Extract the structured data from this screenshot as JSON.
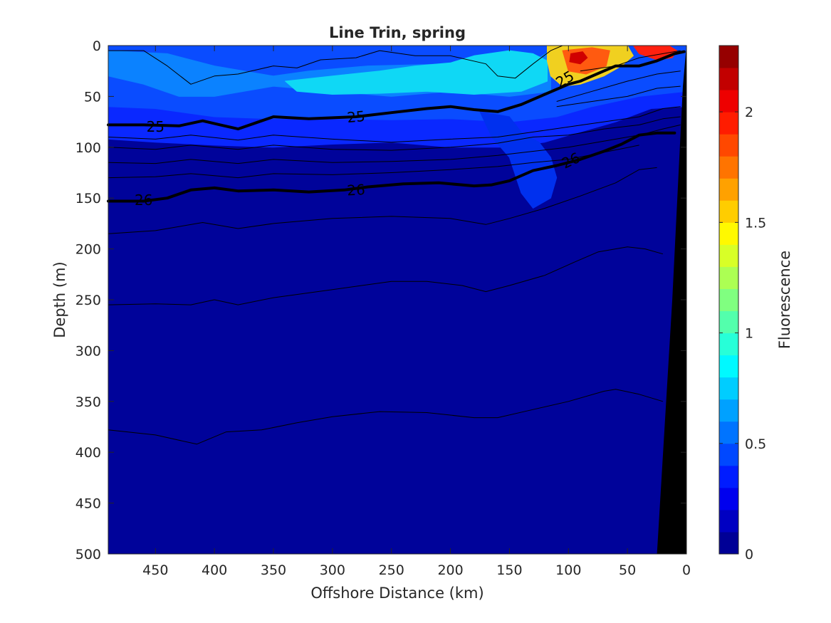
{
  "chart_data": {
    "type": "heatmap",
    "title": "Line Trin, spring",
    "xlabel": "Offshore Distance (km)",
    "ylabel": "Depth (m)",
    "colorbar_label": "Fluorescence",
    "xlim": [
      490,
      0
    ],
    "ylim": [
      500,
      0
    ],
    "x_reversed": true,
    "y_reversed": true,
    "x_ticks": [
      450,
      400,
      350,
      300,
      250,
      200,
      150,
      100,
      50,
      0
    ],
    "y_ticks": [
      0,
      50,
      100,
      150,
      200,
      250,
      300,
      350,
      400,
      450,
      500
    ],
    "colorbar_ticks": [
      0,
      0.5,
      1,
      1.5,
      2
    ],
    "colorbar_tick_labels": [
      "0",
      "0.5",
      "1",
      "1.5",
      "2"
    ],
    "colorbar_range": [
      0,
      2.3
    ],
    "colorbar_levels": 23,
    "colormap": "jet",
    "grid": false,
    "fill_layers": [
      {
        "name": "surface-mid",
        "level": 0.5,
        "color": "#0a28ff",
        "points": [
          [
            490,
            0
          ],
          [
            0,
            0
          ],
          [
            0,
            60
          ],
          [
            30,
            62
          ],
          [
            60,
            75
          ],
          [
            90,
            85
          ],
          [
            120,
            95
          ],
          [
            150,
            100
          ],
          [
            200,
            100
          ],
          [
            250,
            95
          ],
          [
            300,
            97
          ],
          [
            350,
            100
          ],
          [
            400,
            98
          ],
          [
            450,
            95
          ],
          [
            490,
            92
          ]
        ]
      },
      {
        "name": "surface-upper",
        "level": 0.4,
        "color": "#0a4cff",
        "points": [
          [
            490,
            0
          ],
          [
            0,
            0
          ],
          [
            0,
            45
          ],
          [
            40,
            50
          ],
          [
            80,
            60
          ],
          [
            110,
            70
          ],
          [
            150,
            75
          ],
          [
            200,
            72
          ],
          [
            250,
            73
          ],
          [
            300,
            72
          ],
          [
            350,
            72
          ],
          [
            400,
            70
          ],
          [
            450,
            62
          ],
          [
            490,
            60
          ]
        ]
      },
      {
        "name": "nearshore-tongue",
        "level": 0.25,
        "color": "#0030ee",
        "points": [
          [
            175,
            65
          ],
          [
            150,
            70
          ],
          [
            140,
            85
          ],
          [
            125,
            95
          ],
          [
            115,
            110
          ],
          [
            110,
            130
          ],
          [
            115,
            150
          ],
          [
            130,
            160
          ],
          [
            140,
            145
          ],
          [
            150,
            110
          ],
          [
            165,
            90
          ]
        ]
      },
      {
        "name": "subsurface-core",
        "level": 0.65,
        "color": "#0b82ff",
        "points": [
          [
            490,
            5
          ],
          [
            440,
            8
          ],
          [
            400,
            20
          ],
          [
            350,
            30
          ],
          [
            320,
            25
          ],
          [
            270,
            20
          ],
          [
            200,
            18
          ],
          [
            160,
            20
          ],
          [
            130,
            15
          ],
          [
            115,
            5
          ],
          [
            115,
            45
          ],
          [
            150,
            50
          ],
          [
            200,
            45
          ],
          [
            250,
            50
          ],
          [
            300,
            45
          ],
          [
            350,
            40
          ],
          [
            400,
            50
          ],
          [
            430,
            50
          ],
          [
            460,
            38
          ],
          [
            490,
            30
          ]
        ]
      },
      {
        "name": "cyan-core",
        "level": 0.85,
        "color": "#0fd8f5",
        "points": [
          [
            340,
            35
          ],
          [
            300,
            30
          ],
          [
            260,
            25
          ],
          [
            230,
            20
          ],
          [
            200,
            17
          ],
          [
            180,
            10
          ],
          [
            150,
            5
          ],
          [
            130,
            8
          ],
          [
            118,
            15
          ],
          [
            118,
            35
          ],
          [
            140,
            45
          ],
          [
            180,
            48
          ],
          [
            220,
            45
          ],
          [
            260,
            47
          ],
          [
            300,
            48
          ],
          [
            330,
            45
          ]
        ]
      },
      {
        "name": "chl-max-outer",
        "level": 1.5,
        "color": "#f0d020",
        "points": [
          [
            118,
            0
          ],
          [
            105,
            0
          ],
          [
            60,
            0
          ],
          [
            50,
            0
          ],
          [
            45,
            10
          ],
          [
            55,
            20
          ],
          [
            70,
            30
          ],
          [
            90,
            38
          ],
          [
            105,
            40
          ],
          [
            115,
            30
          ],
          [
            118,
            15
          ]
        ]
      },
      {
        "name": "chl-max-offshore",
        "level": 1.9,
        "color": "#ff5a10",
        "points": [
          [
            105,
            5
          ],
          [
            80,
            2
          ],
          [
            65,
            5
          ],
          [
            68,
            20
          ],
          [
            85,
            28
          ],
          [
            100,
            25
          ]
        ]
      },
      {
        "name": "chl-max-coastal",
        "level": 2.0,
        "color": "#ff2010",
        "points": [
          [
            45,
            0
          ],
          [
            15,
            0
          ],
          [
            8,
            5
          ],
          [
            12,
            12
          ],
          [
            25,
            14
          ],
          [
            40,
            8
          ]
        ]
      },
      {
        "name": "chl-max-peak",
        "level": 2.2,
        "color": "#d00000",
        "points": [
          [
            98,
            8
          ],
          [
            88,
            6
          ],
          [
            84,
            12
          ],
          [
            90,
            18
          ],
          [
            99,
            16
          ]
        ]
      }
    ],
    "bathymetry": {
      "color": "#000000",
      "points": [
        [
          0,
          0
        ],
        [
          0,
          500
        ],
        [
          25,
          500
        ],
        [
          12,
          250
        ],
        [
          3,
          40
        ]
      ]
    },
    "isopycnals_thin": [
      [
        [
          490,
          5
        ],
        [
          460,
          5
        ],
        [
          440,
          20
        ],
        [
          420,
          38
        ],
        [
          400,
          30
        ],
        [
          380,
          28
        ],
        [
          350,
          20
        ],
        [
          330,
          22
        ],
        [
          310,
          14
        ],
        [
          280,
          12
        ],
        [
          260,
          5
        ],
        [
          230,
          10
        ],
        [
          200,
          10
        ],
        [
          170,
          18
        ],
        [
          160,
          30
        ],
        [
          145,
          32
        ],
        [
          130,
          18
        ],
        [
          115,
          5
        ],
        [
          105,
          0
        ]
      ],
      [
        [
          90,
          25
        ],
        [
          60,
          20
        ],
        [
          40,
          12
        ],
        [
          20,
          8
        ],
        [
          5,
          5
        ]
      ],
      [
        [
          110,
          55
        ],
        [
          80,
          45
        ],
        [
          50,
          35
        ],
        [
          25,
          28
        ],
        [
          5,
          25
        ]
      ],
      [
        [
          110,
          60
        ],
        [
          80,
          55
        ],
        [
          50,
          50
        ],
        [
          25,
          42
        ],
        [
          5,
          40
        ]
      ],
      [
        [
          490,
          90
        ],
        [
          450,
          92
        ],
        [
          420,
          88
        ],
        [
          380,
          93
        ],
        [
          350,
          88
        ],
        [
          300,
          92
        ],
        [
          250,
          95
        ],
        [
          200,
          92
        ],
        [
          160,
          90
        ],
        [
          130,
          85
        ],
        [
          100,
          80
        ],
        [
          70,
          75
        ],
        [
          40,
          70
        ],
        [
          20,
          62
        ],
        [
          5,
          60
        ]
      ],
      [
        [
          490,
          100
        ],
        [
          450,
          102
        ],
        [
          420,
          98
        ],
        [
          380,
          102
        ],
        [
          350,
          98
        ],
        [
          300,
          102
        ],
        [
          250,
          103
        ],
        [
          200,
          100
        ],
        [
          160,
          96
        ],
        [
          130,
          90
        ],
        [
          100,
          88
        ],
        [
          70,
          82
        ],
        [
          40,
          78
        ],
        [
          20,
          72
        ],
        [
          5,
          70
        ]
      ],
      [
        [
          490,
          115
        ],
        [
          450,
          116
        ],
        [
          420,
          112
        ],
        [
          380,
          116
        ],
        [
          350,
          112
        ],
        [
          300,
          115
        ],
        [
          250,
          114
        ],
        [
          200,
          112
        ],
        [
          160,
          108
        ],
        [
          130,
          104
        ],
        [
          100,
          100
        ],
        [
          70,
          94
        ],
        [
          40,
          88
        ],
        [
          20,
          82
        ],
        [
          5,
          78
        ]
      ],
      [
        [
          490,
          130
        ],
        [
          450,
          129
        ],
        [
          420,
          126
        ],
        [
          380,
          130
        ],
        [
          350,
          126
        ],
        [
          300,
          127
        ],
        [
          250,
          125
        ],
        [
          200,
          122
        ],
        [
          160,
          119
        ],
        [
          130,
          115
        ],
        [
          100,
          112
        ],
        [
          70,
          105
        ],
        [
          40,
          98
        ]
      ],
      [
        [
          490,
          185
        ],
        [
          450,
          182
        ],
        [
          410,
          174
        ],
        [
          380,
          180
        ],
        [
          350,
          175
        ],
        [
          300,
          170
        ],
        [
          250,
          168
        ],
        [
          200,
          170
        ],
        [
          170,
          176
        ],
        [
          150,
          170
        ],
        [
          120,
          160
        ],
        [
          90,
          148
        ],
        [
          60,
          135
        ],
        [
          40,
          122
        ],
        [
          25,
          120
        ]
      ],
      [
        [
          490,
          255
        ],
        [
          450,
          254
        ],
        [
          420,
          255
        ],
        [
          400,
          250
        ],
        [
          380,
          255
        ],
        [
          350,
          248
        ],
        [
          300,
          240
        ],
        [
          250,
          232
        ],
        [
          220,
          232
        ],
        [
          190,
          236
        ],
        [
          170,
          242
        ],
        [
          150,
          236
        ],
        [
          120,
          226
        ],
        [
          95,
          213
        ],
        [
          75,
          203
        ],
        [
          50,
          198
        ],
        [
          35,
          200
        ],
        [
          20,
          205
        ]
      ],
      [
        [
          490,
          378
        ],
        [
          450,
          383
        ],
        [
          415,
          392
        ],
        [
          390,
          380
        ],
        [
          360,
          378
        ],
        [
          330,
          371
        ],
        [
          300,
          365
        ],
        [
          260,
          360
        ],
        [
          220,
          361
        ],
        [
          180,
          366
        ],
        [
          160,
          366
        ],
        [
          130,
          358
        ],
        [
          100,
          350
        ],
        [
          70,
          340
        ],
        [
          60,
          338
        ],
        [
          40,
          343
        ],
        [
          20,
          350
        ]
      ]
    ],
    "isopycnals_bold": [
      {
        "label": "25",
        "points": [
          [
            490,
            78
          ],
          [
            460,
            78
          ],
          [
            430,
            79
          ],
          [
            410,
            74
          ],
          [
            395,
            78
          ],
          [
            380,
            82
          ],
          [
            360,
            74
          ],
          [
            350,
            70
          ],
          [
            320,
            72
          ],
          [
            280,
            70
          ],
          [
            250,
            66
          ],
          [
            220,
            62
          ],
          [
            200,
            60
          ],
          [
            180,
            63
          ],
          [
            160,
            65
          ],
          [
            140,
            58
          ],
          [
            120,
            48
          ],
          [
            100,
            38
          ],
          [
            90,
            35
          ],
          [
            70,
            25
          ],
          [
            60,
            20
          ],
          [
            40,
            20
          ],
          [
            25,
            15
          ],
          [
            10,
            8
          ],
          [
            2,
            6
          ]
        ]
      },
      {
        "label": "26",
        "points": [
          [
            490,
            153
          ],
          [
            460,
            153
          ],
          [
            440,
            150
          ],
          [
            420,
            142
          ],
          [
            400,
            140
          ],
          [
            380,
            143
          ],
          [
            350,
            142
          ],
          [
            320,
            144
          ],
          [
            290,
            142
          ],
          [
            270,
            139
          ],
          [
            240,
            136
          ],
          [
            210,
            135
          ],
          [
            180,
            138
          ],
          [
            165,
            137
          ],
          [
            150,
            133
          ],
          [
            130,
            123
          ],
          [
            110,
            118
          ],
          [
            90,
            112
          ],
          [
            70,
            104
          ],
          [
            55,
            97
          ],
          [
            40,
            88
          ],
          [
            25,
            86
          ],
          [
            10,
            86
          ]
        ]
      }
    ],
    "contour_labels": [
      {
        "text": "25",
        "x": 450,
        "y": 80,
        "angle": 0
      },
      {
        "text": "25",
        "x": 280,
        "y": 70,
        "angle": -5
      },
      {
        "text": "25",
        "x": 103,
        "y": 33,
        "angle": -30
      },
      {
        "text": "26",
        "x": 460,
        "y": 152,
        "angle": 0
      },
      {
        "text": "26",
        "x": 280,
        "y": 142,
        "angle": -3
      },
      {
        "text": "26",
        "x": 98,
        "y": 113,
        "angle": -25
      }
    ]
  }
}
